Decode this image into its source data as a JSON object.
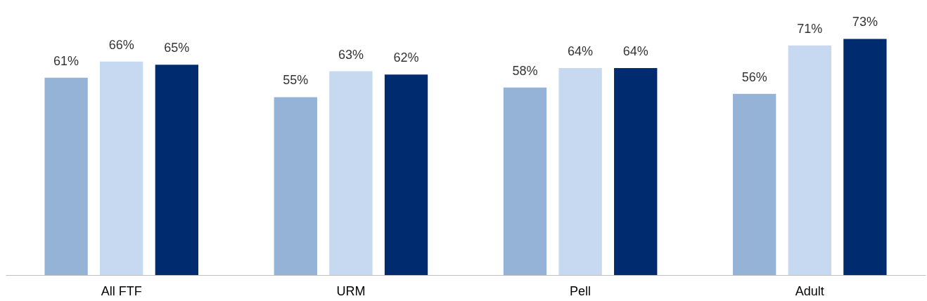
{
  "chart_data": {
    "type": "bar",
    "categories": [
      "All FTF",
      "URM",
      "Pell",
      "Adult"
    ],
    "series": [
      {
        "color": "#95b3d7",
        "values": [
          61,
          55,
          58,
          56
        ],
        "value_labels": [
          "61%",
          "55%",
          "58%",
          "56%"
        ]
      },
      {
        "color": "#c6d9f1",
        "values": [
          66,
          63,
          64,
          71
        ],
        "value_labels": [
          "66%",
          "63%",
          "64%",
          "71%"
        ]
      },
      {
        "color": "#002b6f",
        "values": [
          65,
          62,
          64,
          73
        ],
        "value_labels": [
          "65%",
          "62%",
          "64%",
          "73%"
        ]
      }
    ]
  }
}
